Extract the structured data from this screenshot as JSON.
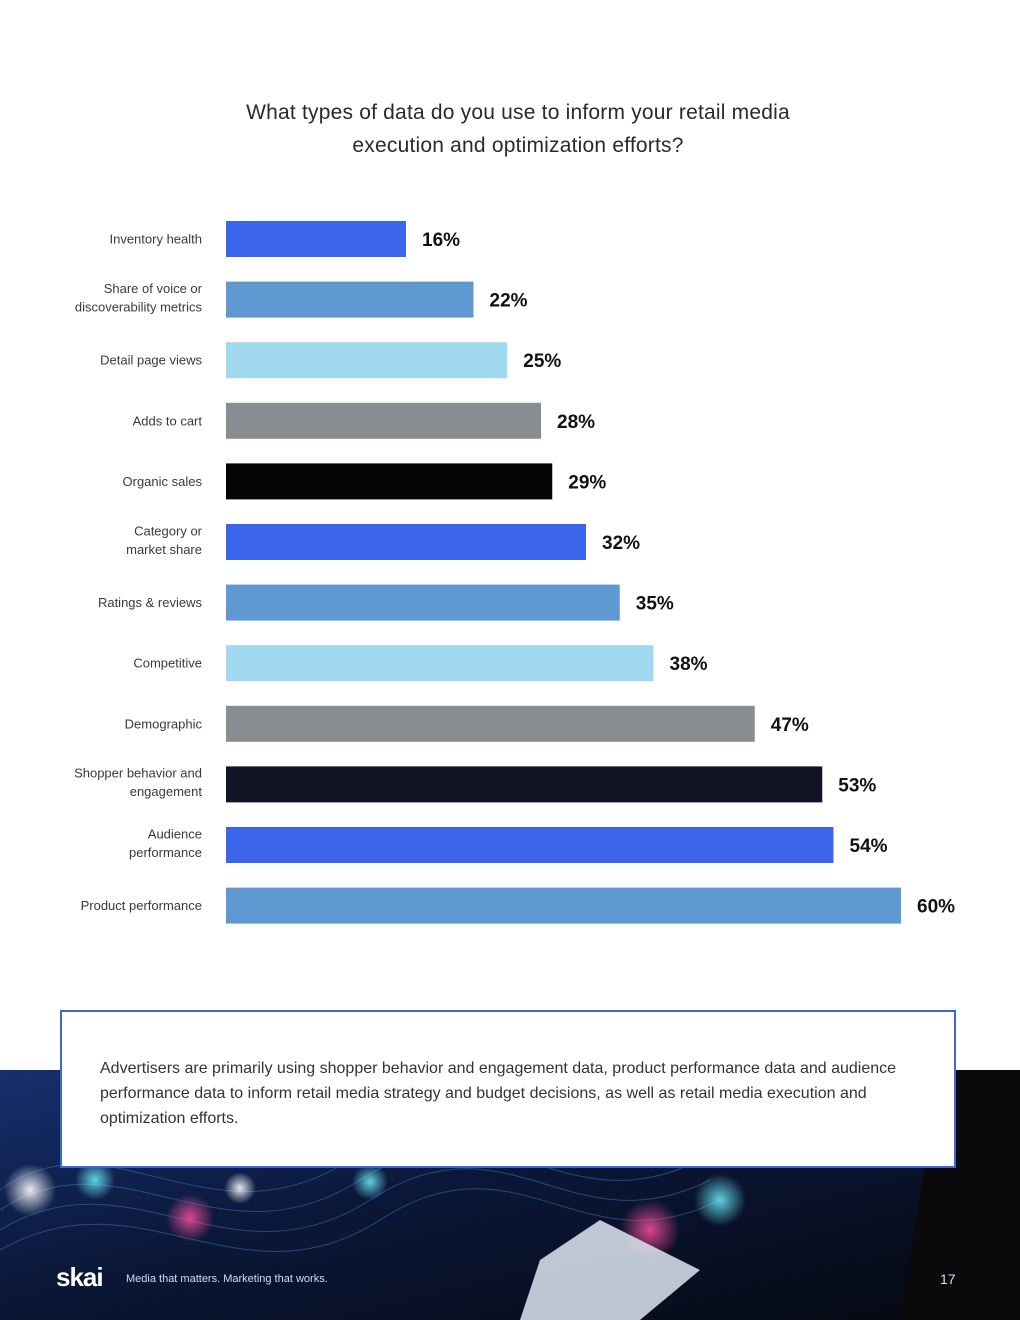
{
  "title_lines": [
    "What types of data do you use to inform your retail media",
    "execution and optimization efforts?"
  ],
  "chart_data": {
    "type": "bar",
    "orientation": "horizontal",
    "title": "What types of data do you use to inform your retail media execution and optimization efforts?",
    "xlim": [
      0,
      60
    ],
    "grid": false,
    "categories": [
      [
        "Inventory health"
      ],
      [
        "Share of voice or",
        "discoverability metrics"
      ],
      [
        "Detail page views"
      ],
      [
        "Adds to cart"
      ],
      [
        "Organic sales"
      ],
      [
        "Category or",
        "market share"
      ],
      [
        "Ratings & reviews"
      ],
      [
        "Competitive"
      ],
      [
        "Demographic"
      ],
      [
        "Shopper behavior and",
        "engagement"
      ],
      [
        "Audience",
        "performance"
      ],
      [
        "Product performance"
      ]
    ],
    "values": [
      16,
      22,
      25,
      28,
      29,
      32,
      35,
      38,
      47,
      53,
      54,
      60
    ],
    "value_labels": [
      "16%",
      "22%",
      "25%",
      "28%",
      "29%",
      "32%",
      "35%",
      "38%",
      "47%",
      "53%",
      "54%",
      "60%"
    ],
    "colors": [
      "#3b66ec",
      "#6099d2",
      "#a0d8ee",
      "#888d91",
      "#050505",
      "#3b66ec",
      "#6099d2",
      "#a0d8ee",
      "#888d91",
      "#111425",
      "#3b66ec",
      "#6099d2"
    ]
  },
  "callout": {
    "text": "Advertisers are primarily using shopper behavior and engagement data, product performance data and audience performance data to inform retail media strategy and budget decisions, as well as retail media execution and optimization efforts."
  },
  "footer": {
    "brand": "skai",
    "tagline": "Media that matters.  Marketing that works.",
    "page_number": "17"
  },
  "colors": {
    "accent": "#3d66d6",
    "footer_bg": "#0e1a3a"
  }
}
